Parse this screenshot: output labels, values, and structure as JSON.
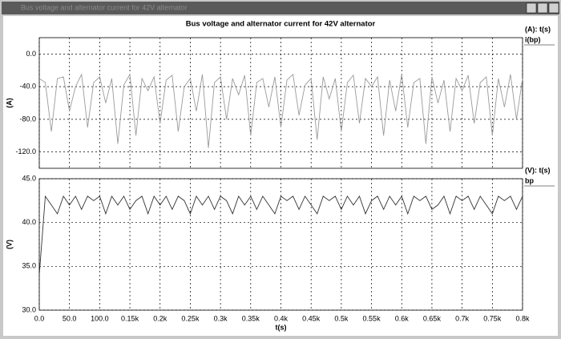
{
  "window_title": "Bus voltage and alternator current for 42V alternator",
  "title": "Bus voltage and alternator current for 42V alternator",
  "chart_data": [
    {
      "type": "line",
      "ylabel": "(A)",
      "legend_header": "(A):  t(s)",
      "xlim": [
        0,
        800
      ],
      "ylim": [
        -140,
        20
      ],
      "grid": true,
      "xticks": [
        0,
        50,
        100,
        150,
        200,
        250,
        300,
        350,
        400,
        450,
        500,
        550,
        600,
        650,
        700,
        750,
        800
      ],
      "yticks": [
        {
          "value": 0,
          "label": "0.0"
        },
        {
          "value": -40,
          "label": "-40.0"
        },
        {
          "value": -80,
          "label": "-80.0"
        },
        {
          "value": -120,
          "label": "-120.0"
        }
      ],
      "x": [
        0,
        10,
        20,
        30,
        40,
        50,
        60,
        70,
        80,
        90,
        100,
        110,
        120,
        130,
        140,
        150,
        160,
        170,
        180,
        190,
        200,
        210,
        220,
        230,
        240,
        250,
        260,
        270,
        280,
        290,
        300,
        310,
        320,
        330,
        340,
        350,
        360,
        370,
        380,
        390,
        400,
        410,
        420,
        430,
        440,
        450,
        460,
        470,
        480,
        490,
        500,
        510,
        520,
        530,
        540,
        550,
        560,
        570,
        580,
        590,
        600,
        610,
        620,
        630,
        640,
        650,
        660,
        670,
        680,
        690,
        700,
        710,
        720,
        730,
        740,
        750,
        760,
        770,
        780,
        790,
        800
      ],
      "series": [
        {
          "name": "i(bp)",
          "color": "#9a9a9a",
          "values": [
            -30,
            -35,
            -95,
            -30,
            -28,
            -70,
            -40,
            -25,
            -90,
            -35,
            -28,
            -60,
            -30,
            -110,
            -38,
            -25,
            -100,
            -30,
            -45,
            -28,
            -85,
            -32,
            -26,
            -95,
            -40,
            -30,
            -70,
            -25,
            -115,
            -35,
            -28,
            -80,
            -30,
            -50,
            -26,
            -100,
            -35,
            -30,
            -65,
            -28,
            -90,
            -32,
            -25,
            -75,
            -38,
            -30,
            -105,
            -28,
            -55,
            -30,
            -95,
            -35,
            -26,
            -85,
            -30,
            -40,
            -28,
            -100,
            -32,
            -70,
            -25,
            -90,
            -35,
            -30,
            -110,
            -28,
            -60,
            -32,
            -95,
            -30,
            -45,
            -26,
            -85,
            -35,
            -28,
            -100,
            -30,
            -65,
            -25,
            -80,
            -30
          ]
        }
      ]
    },
    {
      "type": "line",
      "ylabel": "(V)",
      "xlabel": "t(s)",
      "legend_header": "(V):  t(s)",
      "xlim": [
        0,
        800
      ],
      "ylim": [
        30,
        45
      ],
      "grid": true,
      "xticks": [
        {
          "value": 0,
          "label": "0.0"
        },
        {
          "value": 50,
          "label": "50.0"
        },
        {
          "value": 100,
          "label": "100.0"
        },
        {
          "value": 150,
          "label": "0.15k"
        },
        {
          "value": 200,
          "label": "0.2k"
        },
        {
          "value": 250,
          "label": "0.25k"
        },
        {
          "value": 300,
          "label": "0.3k"
        },
        {
          "value": 350,
          "label": "0.35k"
        },
        {
          "value": 400,
          "label": "0.4k"
        },
        {
          "value": 450,
          "label": "0.45k"
        },
        {
          "value": 500,
          "label": "0.5k"
        },
        {
          "value": 550,
          "label": "0.55k"
        },
        {
          "value": 600,
          "label": "0.6k"
        },
        {
          "value": 650,
          "label": "0.65k"
        },
        {
          "value": 700,
          "label": "0.7k"
        },
        {
          "value": 750,
          "label": "0.75k"
        },
        {
          "value": 800,
          "label": "0.8k"
        }
      ],
      "yticks": [
        {
          "value": 30,
          "label": "30.0"
        },
        {
          "value": 35,
          "label": "35.0"
        },
        {
          "value": 40,
          "label": "40.0"
        },
        {
          "value": 45,
          "label": "45.0"
        }
      ],
      "x": [
        0,
        10,
        20,
        30,
        40,
        50,
        60,
        70,
        80,
        90,
        100,
        110,
        120,
        130,
        140,
        150,
        160,
        170,
        180,
        190,
        200,
        210,
        220,
        230,
        240,
        250,
        260,
        270,
        280,
        290,
        300,
        310,
        320,
        330,
        340,
        350,
        360,
        370,
        380,
        390,
        400,
        410,
        420,
        430,
        440,
        450,
        460,
        470,
        480,
        490,
        500,
        510,
        520,
        530,
        540,
        550,
        560,
        570,
        580,
        590,
        600,
        610,
        620,
        630,
        640,
        650,
        660,
        670,
        680,
        690,
        700,
        710,
        720,
        730,
        740,
        750,
        760,
        770,
        780,
        790,
        800
      ],
      "series": [
        {
          "name": "bp",
          "color": "#333333",
          "values": [
            34,
            43,
            42,
            41,
            43,
            42,
            43,
            41.5,
            43,
            42.5,
            43,
            41,
            43,
            42,
            43,
            41.5,
            42.5,
            43,
            41,
            43,
            42,
            43,
            41.5,
            43,
            42.5,
            41,
            43,
            42,
            43,
            41.5,
            43,
            42.5,
            41,
            43,
            42,
            43,
            41.5,
            43,
            42,
            41,
            43,
            42.5,
            43,
            41.5,
            43,
            42,
            41,
            43,
            42.5,
            43,
            41.5,
            43,
            42,
            43,
            41,
            42.5,
            43,
            41.5,
            43,
            42,
            43,
            41,
            43,
            42.5,
            43,
            41.5,
            42,
            43,
            41,
            43,
            42.5,
            43,
            41.5,
            43,
            42,
            41,
            43,
            42.5,
            43,
            41.5,
            43
          ]
        }
      ]
    }
  ]
}
